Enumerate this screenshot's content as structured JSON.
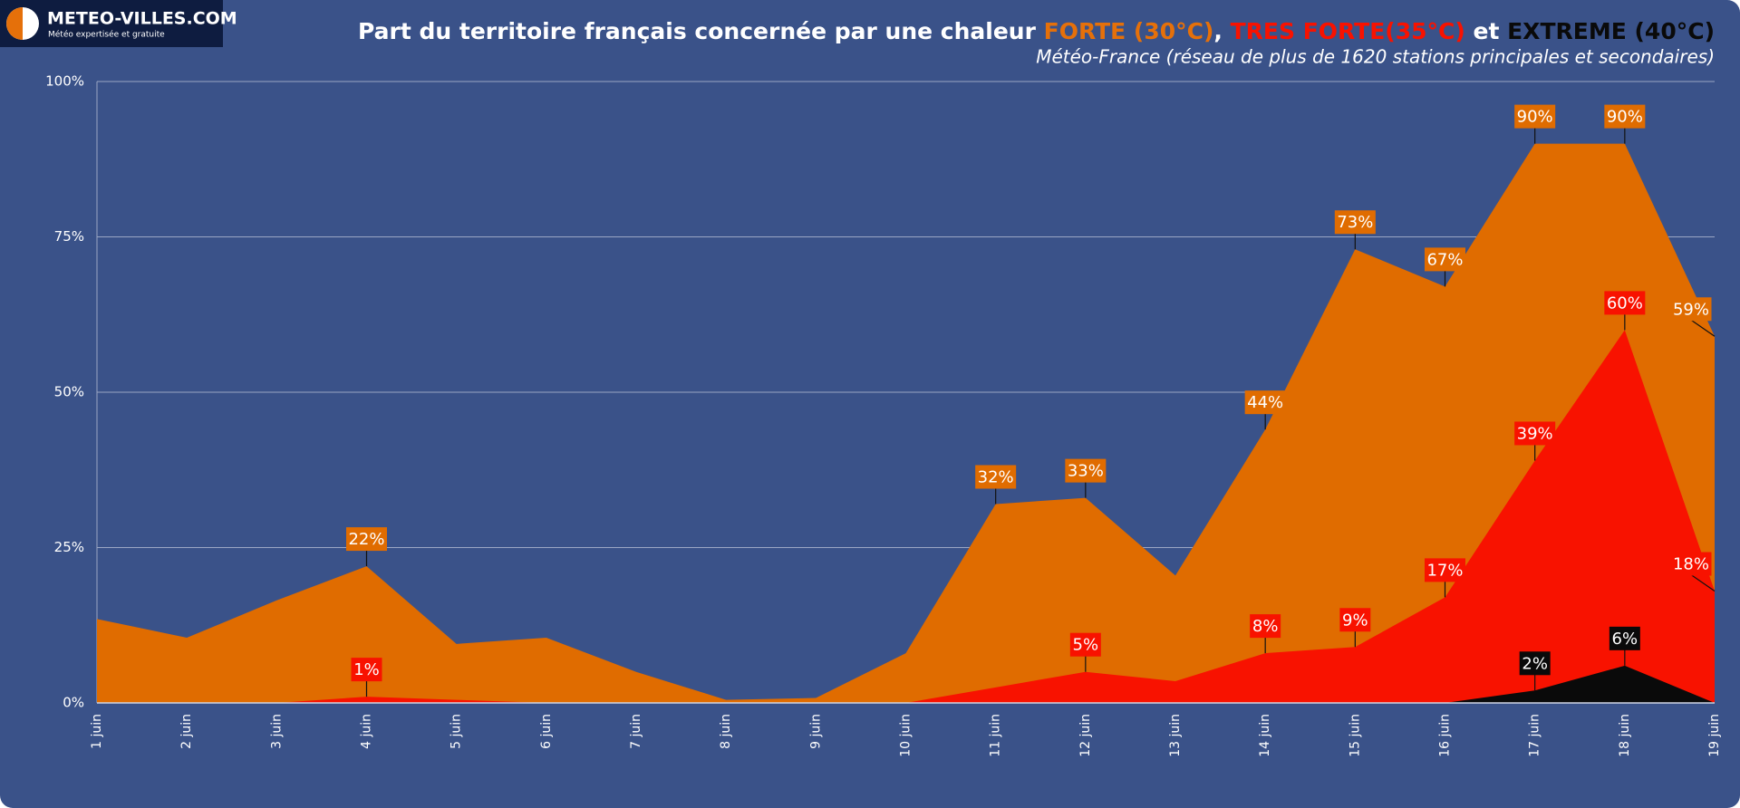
{
  "logo": {
    "name": "METEO-VILLES.COM",
    "tagline": "Météo expertisée et gratuite"
  },
  "chart_data": {
    "type": "area",
    "title_parts": [
      {
        "text": "Part du territoire français concernée par une chaleur ",
        "color": "#ffffff"
      },
      {
        "text": "FORTE (30°C)",
        "color": "#e5700a"
      },
      {
        "text": ", ",
        "color": "#ffffff"
      },
      {
        "text": "TRES FORTE(35°C)",
        "color": "#f81200"
      },
      {
        "text": " et ",
        "color": "#ffffff"
      },
      {
        "text": "EXTREME (40°C)",
        "color": "#0a0a0a"
      }
    ],
    "subtitle": "Météo-France (réseau de plus de 1620 stations principales et secondaires)",
    "categories": [
      "1 juin",
      "2 juin",
      "3 juin",
      "4 juin",
      "5 juin",
      "6 juin",
      "7 juin",
      "8 juin",
      "9 juin",
      "10 juin",
      "11 juin",
      "12 juin",
      "13 juin",
      "14 juin",
      "15 juin",
      "16 juin",
      "17 juin",
      "18 juin",
      "19 juin"
    ],
    "series": [
      {
        "name": "FORTE (30°C)",
        "color": "#e06c00",
        "values": [
          13.5,
          10.5,
          16.5,
          22,
          9.5,
          10.5,
          5,
          0.5,
          0.8,
          8,
          32,
          33,
          20.5,
          44,
          73,
          67,
          90,
          90,
          59
        ],
        "value_labels": [
          null,
          null,
          null,
          "22%",
          null,
          null,
          null,
          null,
          null,
          null,
          "32%",
          "33%",
          null,
          "44%",
          "73%",
          "67%",
          "90%",
          "90%",
          "59%"
        ]
      },
      {
        "name": "TRES FORTE(35°C)",
        "color": "#f81200",
        "values": [
          0,
          0,
          0,
          1,
          0.5,
          0,
          0,
          0,
          0,
          0,
          2.5,
          5,
          3.5,
          8,
          9,
          17,
          39,
          60,
          18
        ],
        "value_labels": [
          null,
          null,
          null,
          "1%",
          null,
          null,
          null,
          null,
          null,
          null,
          null,
          "5%",
          null,
          "8%",
          "9%",
          "17%",
          "39%",
          "60%",
          "18%"
        ]
      },
      {
        "name": "EXTREME (40°C)",
        "color": "#0a0a0a",
        "values": [
          0,
          0,
          0,
          0,
          0,
          0,
          0,
          0,
          0,
          0,
          0,
          0,
          0,
          0,
          0,
          0,
          2,
          6,
          0
        ],
        "value_labels": [
          null,
          null,
          null,
          null,
          null,
          null,
          null,
          null,
          null,
          null,
          null,
          null,
          null,
          null,
          null,
          null,
          "2%",
          "6%",
          null
        ]
      }
    ],
    "ylim": [
      0,
      100
    ],
    "yticks": [
      {
        "value": 0,
        "label": "0%"
      },
      {
        "value": 25,
        "label": "25%"
      },
      {
        "value": 50,
        "label": "50%"
      },
      {
        "value": 75,
        "label": "75%"
      },
      {
        "value": 100,
        "label": "100%"
      }
    ],
    "grid": true
  }
}
